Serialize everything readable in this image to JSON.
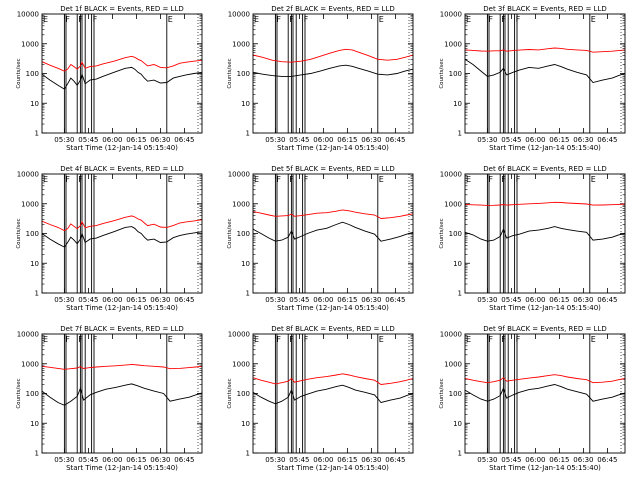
{
  "colors": {
    "events": "#000000",
    "lld": "#ff0000",
    "axes": "#000000",
    "background": "#ffffff"
  },
  "panel_common": {
    "xlabel": "Start Time (12-Jan-14 05:15:40)",
    "ylabel": "Counts/sec",
    "x_tick_labels": [
      "05:30",
      "05:45",
      "06:00",
      "06:15",
      "06:30",
      "06:45"
    ],
    "y_tick_labels": [
      "1",
      "10",
      "100",
      "1000",
      "10000"
    ]
  },
  "chart_data": [
    {
      "type": "line",
      "title": "Det 1f BLACK = Events, RED = LLD",
      "yscale": "log",
      "ylim": [
        1,
        10000
      ],
      "xlim_minutes": [
        0,
        100
      ],
      "x_minutes": [
        0,
        5,
        10,
        14,
        16,
        18,
        20,
        22,
        24,
        25,
        27,
        30,
        34,
        38,
        45,
        52,
        56,
        58,
        60,
        62,
        64,
        66,
        70,
        74,
        78,
        82,
        86,
        90,
        95,
        100
      ],
      "series": [
        {
          "name": "BLACK = Events",
          "color": "#000000",
          "values": [
            95,
            60,
            40,
            30,
            45,
            70,
            55,
            40,
            60,
            95,
            45,
            60,
            65,
            80,
            110,
            150,
            160,
            140,
            110,
            95,
            70,
            55,
            60,
            48,
            50,
            70,
            80,
            90,
            100,
            110
          ]
        },
        {
          "name": "RED = LLD",
          "color": "#ff0000",
          "values": [
            250,
            190,
            150,
            120,
            140,
            200,
            170,
            140,
            180,
            240,
            150,
            170,
            180,
            210,
            260,
            340,
            380,
            350,
            300,
            270,
            220,
            180,
            200,
            160,
            155,
            180,
            220,
            240,
            260,
            280
          ]
        }
      ],
      "flags": [
        {
          "label": "E",
          "x": 0
        },
        {
          "label": "F",
          "x": 14
        },
        {
          "label": "F",
          "x": 22
        },
        {
          "label": "F",
          "x": 31
        },
        {
          "label": "E",
          "x": 78
        }
      ],
      "bands": [
        [
          14,
          15
        ],
        [
          22,
          24
        ],
        [
          25,
          27
        ],
        [
          31,
          32.5
        ]
      ]
    },
    {
      "type": "line",
      "title": "Det 2f BLACK = Events, RED = LLD",
      "yscale": "log",
      "ylim": [
        1,
        10000
      ],
      "xlim_minutes": [
        0,
        100
      ],
      "x_minutes": [
        0,
        6,
        12,
        18,
        24,
        30,
        36,
        42,
        48,
        54,
        58,
        62,
        66,
        72,
        78,
        84,
        90,
        95,
        100
      ],
      "series": [
        {
          "name": "BLACK = Events",
          "color": "#000000",
          "values": [
            110,
            95,
            85,
            80,
            80,
            90,
            100,
            120,
            150,
            180,
            190,
            175,
            150,
            120,
            95,
            90,
            100,
            120,
            140
          ]
        },
        {
          "name": "RED = LLD",
          "color": "#ff0000",
          "values": [
            420,
            350,
            280,
            250,
            240,
            260,
            300,
            380,
            480,
            600,
            650,
            620,
            520,
            400,
            300,
            280,
            300,
            350,
            420
          ]
        }
      ],
      "flags": [
        {
          "label": "E",
          "x": 0
        },
        {
          "label": "F",
          "x": 14
        },
        {
          "label": "F",
          "x": 22
        },
        {
          "label": "F",
          "x": 31
        },
        {
          "label": "E",
          "x": 78
        }
      ],
      "bands": [
        [
          14,
          15
        ],
        [
          22,
          24
        ],
        [
          25,
          27
        ],
        [
          31,
          32.5
        ]
      ]
    },
    {
      "type": "line",
      "title": "Det 3f BLACK = Events, RED = LLD",
      "yscale": "log",
      "ylim": [
        1,
        10000
      ],
      "xlim_minutes": [
        0,
        100
      ],
      "x_minutes": [
        0,
        5,
        10,
        14,
        18,
        22,
        24,
        26,
        30,
        34,
        40,
        46,
        52,
        56,
        60,
        64,
        70,
        76,
        80,
        86,
        92,
        96,
        100
      ],
      "series": [
        {
          "name": "BLACK = Events",
          "color": "#000000",
          "values": [
            300,
            200,
            120,
            80,
            90,
            110,
            150,
            90,
            110,
            130,
            160,
            150,
            180,
            200,
            170,
            140,
            110,
            90,
            50,
            60,
            70,
            85,
            100
          ]
        },
        {
          "name": "RED = LLD",
          "color": "#ff0000",
          "values": [
            620,
            600,
            570,
            560,
            580,
            580,
            620,
            560,
            590,
            610,
            640,
            620,
            680,
            720,
            700,
            650,
            620,
            600,
            520,
            540,
            560,
            590,
            620
          ]
        }
      ],
      "flags": [
        {
          "label": "E",
          "x": 0
        },
        {
          "label": "F",
          "x": 14
        },
        {
          "label": "F",
          "x": 22
        },
        {
          "label": "F",
          "x": 31
        },
        {
          "label": "E",
          "x": 78
        }
      ],
      "bands": [
        [
          14,
          15
        ],
        [
          22,
          24
        ],
        [
          25,
          27
        ],
        [
          31,
          32.5
        ]
      ]
    },
    {
      "type": "line",
      "title": "Det 4f BLACK = Events, RED = LLD",
      "yscale": "log",
      "ylim": [
        1,
        10000
      ],
      "xlim_minutes": [
        0,
        100
      ],
      "x_minutes": [
        0,
        5,
        10,
        14,
        16,
        18,
        20,
        22,
        24,
        25,
        27,
        30,
        34,
        38,
        45,
        52,
        56,
        58,
        60,
        62,
        64,
        66,
        70,
        74,
        78,
        82,
        86,
        90,
        95,
        100
      ],
      "series": [
        {
          "name": "BLACK = Events",
          "color": "#000000",
          "values": [
            100,
            65,
            45,
            35,
            50,
            75,
            60,
            45,
            65,
            100,
            50,
            65,
            70,
            85,
            115,
            160,
            170,
            150,
            115,
            100,
            75,
            60,
            65,
            50,
            52,
            72,
            85,
            95,
            105,
            115
          ]
        },
        {
          "name": "RED = LLD",
          "color": "#ff0000",
          "values": [
            260,
            200,
            160,
            125,
            145,
            210,
            175,
            145,
            185,
            250,
            155,
            175,
            185,
            215,
            270,
            350,
            390,
            360,
            310,
            280,
            225,
            185,
            205,
            165,
            160,
            185,
            225,
            245,
            265,
            290
          ]
        }
      ],
      "flags": [
        {
          "label": "E",
          "x": 0
        },
        {
          "label": "F",
          "x": 14
        },
        {
          "label": "F",
          "x": 22
        },
        {
          "label": "F",
          "x": 31
        },
        {
          "label": "E",
          "x": 78
        }
      ],
      "bands": [
        [
          14,
          15
        ],
        [
          22,
          24
        ],
        [
          25,
          27
        ],
        [
          31,
          32.5
        ]
      ]
    },
    {
      "type": "line",
      "title": "Det 5f BLACK = Events, RED = LLD",
      "yscale": "log",
      "ylim": [
        1,
        10000
      ],
      "xlim_minutes": [
        0,
        100
      ],
      "x_minutes": [
        0,
        5,
        10,
        14,
        18,
        22,
        24,
        26,
        30,
        34,
        40,
        46,
        52,
        56,
        60,
        64,
        70,
        76,
        80,
        86,
        92,
        96,
        100
      ],
      "series": [
        {
          "name": "BLACK = Events",
          "color": "#000000",
          "values": [
            140,
            100,
            70,
            55,
            60,
            75,
            120,
            65,
            80,
            100,
            130,
            150,
            200,
            240,
            200,
            160,
            120,
            95,
            55,
            65,
            80,
            95,
            110
          ]
        },
        {
          "name": "RED = LLD",
          "color": "#ff0000",
          "values": [
            550,
            480,
            420,
            380,
            390,
            400,
            450,
            380,
            400,
            430,
            480,
            500,
            560,
            620,
            580,
            520,
            460,
            420,
            320,
            340,
            380,
            420,
            460
          ]
        }
      ],
      "flags": [
        {
          "label": "E",
          "x": 0
        },
        {
          "label": "F",
          "x": 14
        },
        {
          "label": "F",
          "x": 22
        },
        {
          "label": "F",
          "x": 31
        },
        {
          "label": "E",
          "x": 78
        }
      ],
      "bands": [
        [
          14,
          15
        ],
        [
          22,
          24
        ],
        [
          25,
          27
        ],
        [
          31,
          32.5
        ]
      ]
    },
    {
      "type": "line",
      "title": "Det 6f BLACK = Events, RED = LLD",
      "yscale": "log",
      "ylim": [
        1,
        10000
      ],
      "xlim_minutes": [
        0,
        100
      ],
      "x_minutes": [
        0,
        5,
        10,
        14,
        18,
        22,
        24,
        26,
        30,
        34,
        40,
        46,
        52,
        56,
        60,
        64,
        70,
        76,
        80,
        86,
        92,
        96,
        100
      ],
      "series": [
        {
          "name": "BLACK = Events",
          "color": "#000000",
          "values": [
            110,
            90,
            65,
            55,
            60,
            80,
            140,
            70,
            85,
            95,
            120,
            130,
            150,
            170,
            150,
            135,
            120,
            110,
            60,
            65,
            75,
            90,
            100
          ]
        },
        {
          "name": "RED = LLD",
          "color": "#ff0000",
          "values": [
            950,
            920,
            900,
            880,
            890,
            910,
            940,
            900,
            930,
            960,
            1000,
            1030,
            1080,
            1120,
            1100,
            1060,
            1020,
            980,
            900,
            910,
            930,
            950,
            980
          ]
        }
      ],
      "flags": [
        {
          "label": "E",
          "x": 0
        },
        {
          "label": "F",
          "x": 14
        },
        {
          "label": "F",
          "x": 22
        },
        {
          "label": "F",
          "x": 31
        },
        {
          "label": "E",
          "x": 78
        }
      ],
      "bands": [
        [
          14,
          15
        ],
        [
          22,
          24
        ],
        [
          25,
          27
        ],
        [
          31,
          32.5
        ]
      ]
    },
    {
      "type": "line",
      "title": "Det 7f BLACK = Events, RED = LLD",
      "yscale": "log",
      "ylim": [
        1,
        10000
      ],
      "xlim_minutes": [
        0,
        100
      ],
      "x_minutes": [
        0,
        5,
        10,
        14,
        18,
        22,
        24,
        26,
        30,
        34,
        40,
        46,
        52,
        56,
        60,
        64,
        70,
        76,
        80,
        86,
        92,
        96,
        100
      ],
      "series": [
        {
          "name": "BLACK = Events",
          "color": "#000000",
          "values": [
            120,
            75,
            50,
            40,
            55,
            80,
            150,
            60,
            90,
            110,
            140,
            160,
            190,
            210,
            180,
            150,
            120,
            100,
            55,
            65,
            75,
            90,
            105
          ]
        },
        {
          "name": "RED = LLD",
          "color": "#ff0000",
          "values": [
            820,
            760,
            700,
            650,
            680,
            720,
            800,
            690,
            740,
            780,
            820,
            850,
            900,
            950,
            910,
            860,
            820,
            780,
            680,
            700,
            740,
            780,
            820
          ]
        }
      ],
      "flags": [
        {
          "label": "E",
          "x": 0
        },
        {
          "label": "F",
          "x": 14
        },
        {
          "label": "F",
          "x": 22
        },
        {
          "label": "F",
          "x": 31
        },
        {
          "label": "E",
          "x": 78
        }
      ],
      "bands": [
        [
          14,
          15
        ],
        [
          22,
          24
        ],
        [
          25,
          27
        ],
        [
          31,
          32.5
        ]
      ]
    },
    {
      "type": "line",
      "title": "Det 8f BLACK = Events, RED = LLD",
      "yscale": "log",
      "ylim": [
        1,
        10000
      ],
      "xlim_minutes": [
        0,
        100
      ],
      "x_minutes": [
        0,
        5,
        10,
        14,
        18,
        22,
        24,
        26,
        30,
        34,
        40,
        46,
        52,
        56,
        60,
        64,
        70,
        76,
        80,
        86,
        92,
        96,
        100
      ],
      "series": [
        {
          "name": "BLACK = Events",
          "color": "#000000",
          "values": [
            110,
            75,
            55,
            45,
            55,
            75,
            130,
            60,
            80,
            95,
            120,
            140,
            170,
            190,
            160,
            130,
            110,
            90,
            50,
            60,
            70,
            85,
            100
          ]
        },
        {
          "name": "RED = LLD",
          "color": "#ff0000",
          "values": [
            340,
            280,
            240,
            210,
            230,
            260,
            320,
            240,
            270,
            300,
            340,
            370,
            420,
            460,
            420,
            370,
            320,
            280,
            200,
            220,
            250,
            280,
            320
          ]
        }
      ],
      "flags": [
        {
          "label": "E",
          "x": 0
        },
        {
          "label": "F",
          "x": 14
        },
        {
          "label": "F",
          "x": 22
        },
        {
          "label": "F",
          "x": 31
        },
        {
          "label": "E",
          "x": 78
        }
      ],
      "bands": [
        [
          14,
          15
        ],
        [
          22,
          24
        ],
        [
          25,
          27
        ],
        [
          31,
          32.5
        ]
      ]
    },
    {
      "type": "line",
      "title": "Det 9f BLACK = Events, RED = LLD",
      "yscale": "log",
      "ylim": [
        1,
        10000
      ],
      "xlim_minutes": [
        0,
        100
      ],
      "x_minutes": [
        0,
        5,
        10,
        14,
        18,
        22,
        24,
        26,
        30,
        34,
        40,
        46,
        52,
        56,
        60,
        64,
        70,
        76,
        80,
        86,
        92,
        96,
        100
      ],
      "series": [
        {
          "name": "BLACK = Events",
          "color": "#000000",
          "values": [
            130,
            90,
            65,
            55,
            65,
            85,
            150,
            70,
            90,
            110,
            135,
            150,
            180,
            200,
            170,
            140,
            115,
            95,
            55,
            65,
            75,
            90,
            105
          ]
        },
        {
          "name": "RED = LLD",
          "color": "#ff0000",
          "values": [
            320,
            280,
            250,
            230,
            250,
            280,
            340,
            260,
            280,
            300,
            330,
            360,
            400,
            430,
            400,
            360,
            320,
            290,
            230,
            240,
            260,
            290,
            320
          ]
        }
      ],
      "flags": [
        {
          "label": "E",
          "x": 0
        },
        {
          "label": "F",
          "x": 14
        },
        {
          "label": "F",
          "x": 22
        },
        {
          "label": "F",
          "x": 31
        },
        {
          "label": "E",
          "x": 78
        }
      ],
      "bands": [
        [
          14,
          15
        ],
        [
          22,
          24
        ],
        [
          25,
          27
        ],
        [
          31,
          32.5
        ]
      ]
    }
  ]
}
